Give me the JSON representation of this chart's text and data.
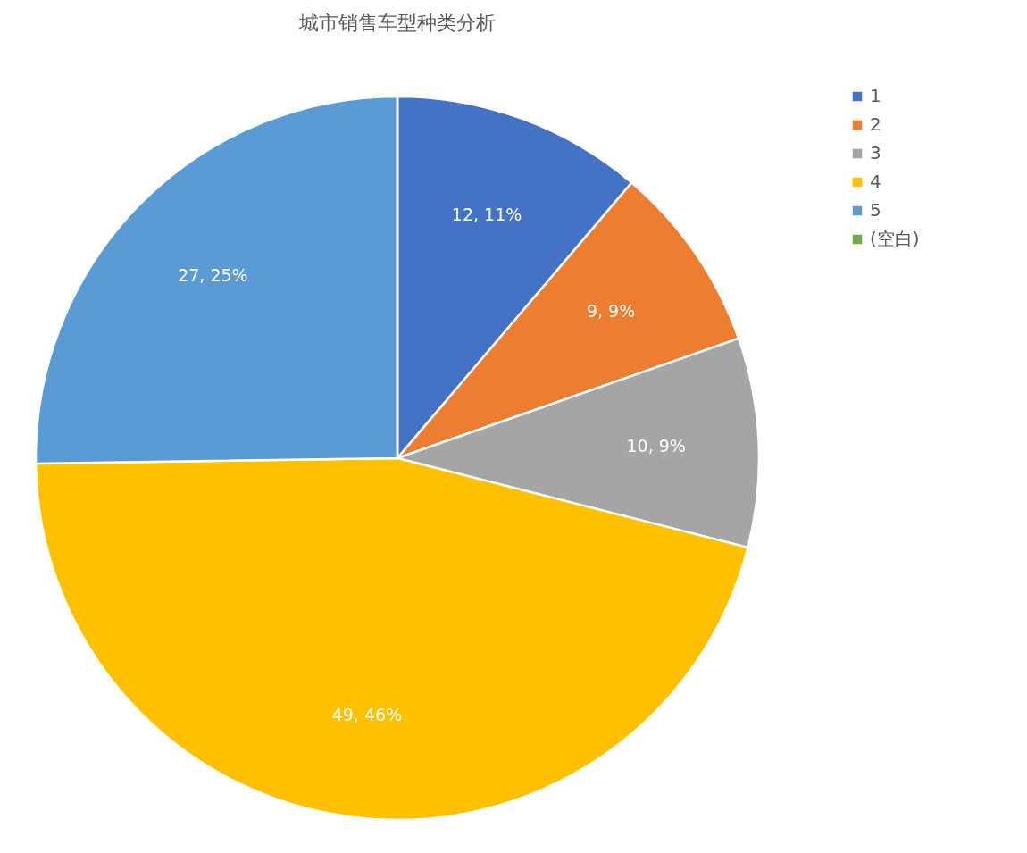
{
  "chart_data": {
    "type": "pie",
    "title": "城市销售车型种类分析",
    "categories": [
      "1",
      "2",
      "3",
      "4",
      "5",
      "(空白)"
    ],
    "values": [
      12,
      9,
      10,
      49,
      27,
      0
    ],
    "colors": [
      "#4472c4",
      "#ed7d31",
      "#a5a5a5",
      "#ffc000",
      "#5b9bd5",
      "#70ad47"
    ],
    "value_labels": [
      "12, 11%",
      "9, 9%",
      "10, 9%",
      "49, 46%",
      "27, 25%",
      null
    ],
    "legend": "right"
  }
}
